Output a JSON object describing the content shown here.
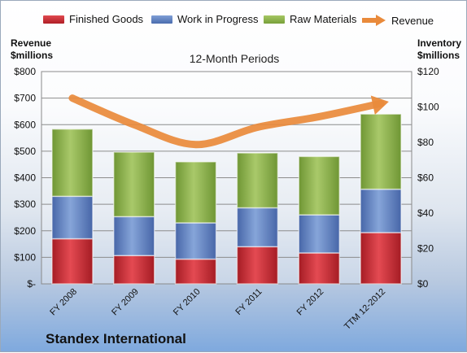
{
  "chart_data": {
    "type": "bar",
    "subtitle": "12-Month Periods",
    "company": "Standex International",
    "y_left_label": "Revenue $millions",
    "y_right_label": "Inventory $millions",
    "categories": [
      "FY 2008",
      "FY 2009",
      "FY 2010",
      "FY 2011",
      "FY 2012",
      "TTM 12-2012"
    ],
    "y_left_ticks": [
      "$-",
      "$100",
      "$200",
      "$300",
      "$400",
      "$500",
      "$600",
      "$700",
      "$800"
    ],
    "y_right_ticks": [
      "$0",
      "$20",
      "$40",
      "$60",
      "$80",
      "$100",
      "$120"
    ],
    "ylim_left": [
      0,
      800
    ],
    "ylim_right": [
      0,
      120
    ],
    "grid": true,
    "legend_position": "top",
    "series": [
      {
        "name": "Finished Goods",
        "type": "stacked-bar",
        "axis": "right",
        "color": "#c0282f",
        "values": [
          25.5,
          16.0,
          14.0,
          21.0,
          17.5,
          29.0
        ]
      },
      {
        "name": "Work in Progress",
        "type": "stacked-bar",
        "axis": "right",
        "color": "#5b7fbf",
        "values": [
          24.0,
          22.0,
          20.5,
          22.0,
          21.5,
          24.5
        ]
      },
      {
        "name": "Raw Materials",
        "type": "stacked-bar",
        "axis": "right",
        "color": "#8cb04a",
        "values": [
          38.0,
          36.5,
          34.5,
          31.0,
          33.0,
          42.5
        ]
      },
      {
        "name": "Revenue",
        "type": "line",
        "axis": "left",
        "color": "#e98a3b",
        "values": [
          700,
          600,
          525,
          590,
          630,
          680
        ]
      }
    ]
  }
}
